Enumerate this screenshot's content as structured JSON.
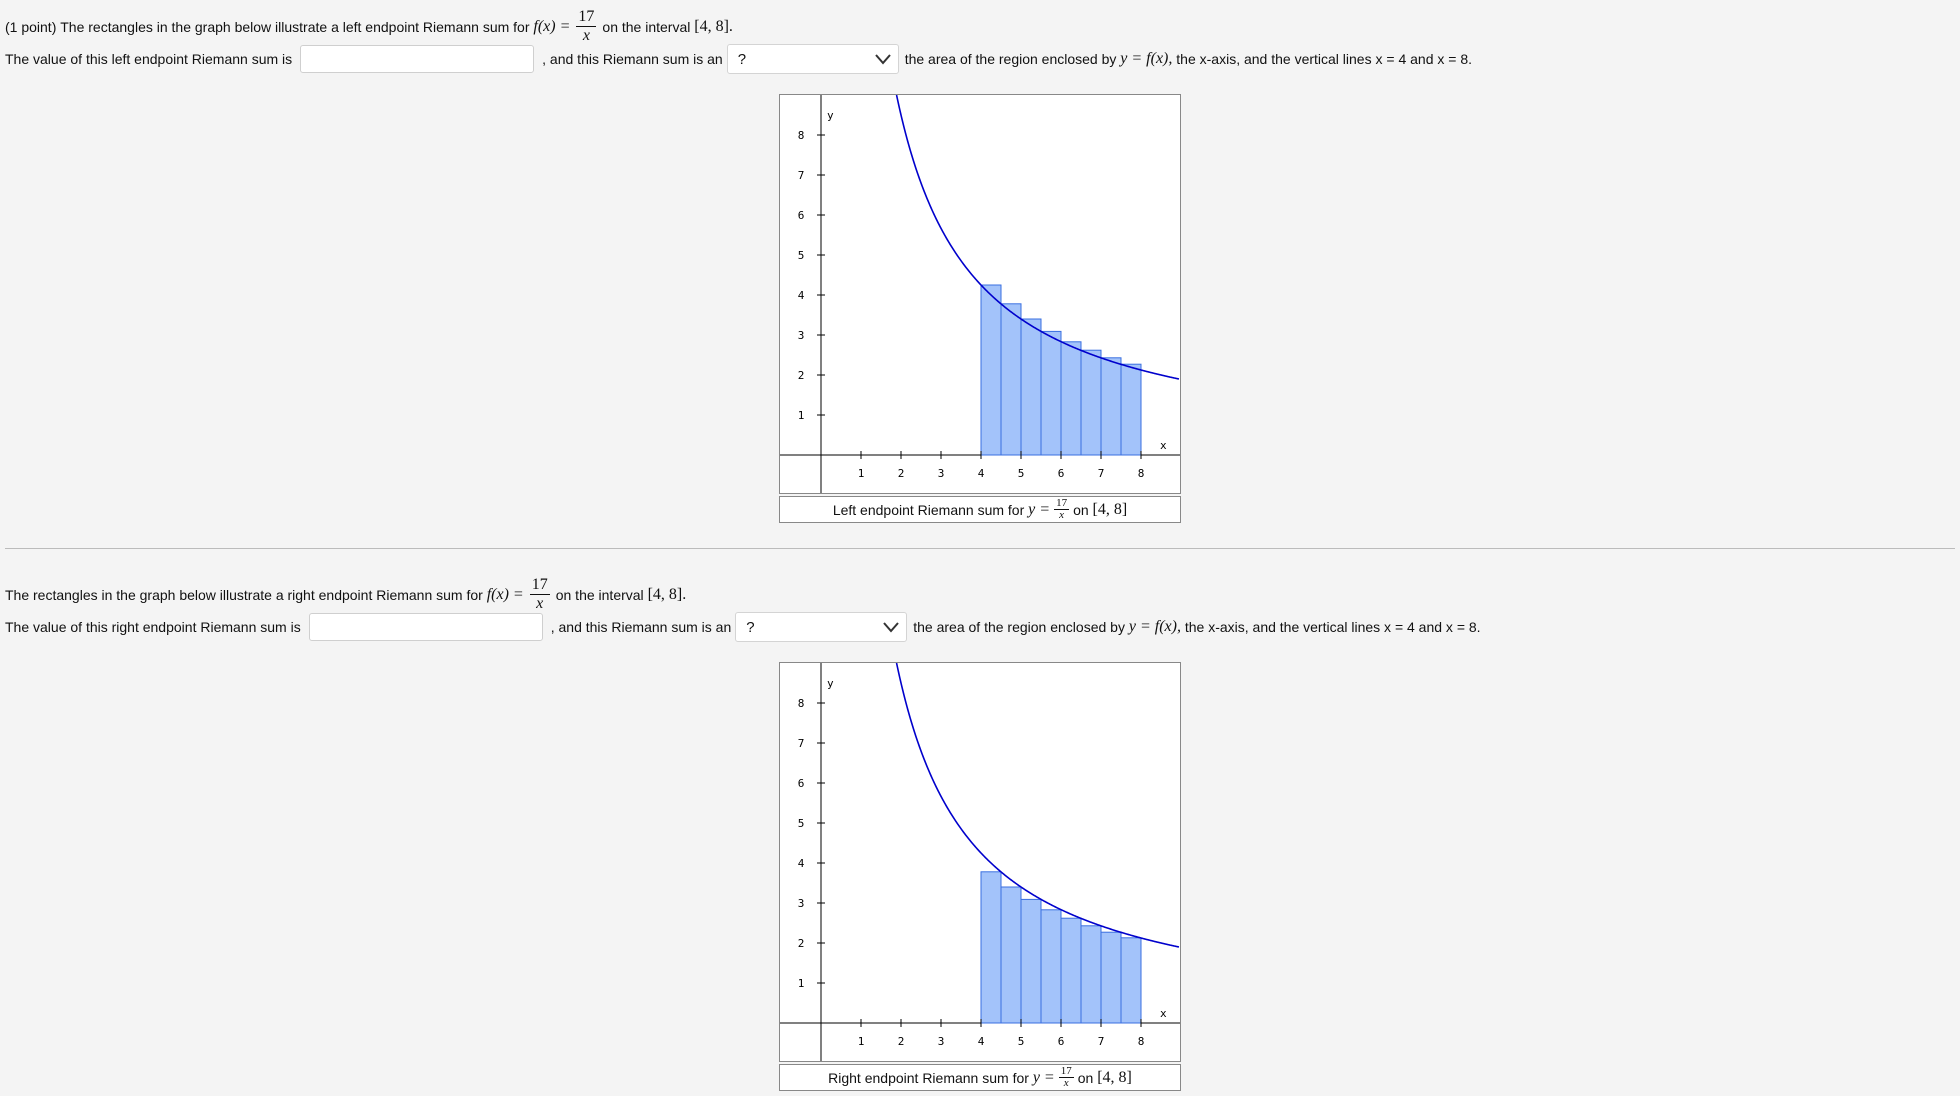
{
  "problem1": {
    "points": "(1 point)",
    "intro_pre": "The rectangles in the graph below illustrate a left endpoint Riemann sum for",
    "fx": "f(x) =",
    "numerator": "17",
    "denominator": "x",
    "intro_post": "on the interval",
    "interval": "[4, 8].",
    "value_pre": "The value of this left endpoint Riemann sum is",
    "input_value": "",
    "mid_text": ", and this Riemann sum is an",
    "select_value": "?",
    "tail_pre": "the area of the region enclosed by",
    "tail_eq": "y = f(x),",
    "tail_post": "the x-axis, and the vertical lines x = 4 and x = 8.",
    "caption_pre": "Left endpoint Riemann sum for",
    "caption_eq": "y =",
    "caption_post": "on",
    "caption_interval": "[4, 8]"
  },
  "problem2": {
    "intro_pre": "The rectangles in the graph below illustrate a right endpoint Riemann sum for",
    "fx": "f(x) =",
    "numerator": "17",
    "denominator": "x",
    "intro_post": "on the interval",
    "interval": "[4, 8].",
    "value_pre": "The value of this right endpoint Riemann sum is",
    "input_value": "",
    "mid_text": ", and this Riemann sum is an",
    "select_value": "?",
    "tail_pre": "the area of the region enclosed by",
    "tail_eq": "y = f(x),",
    "tail_post": "the x-axis, and the vertical lines x = 4 and x = 8.",
    "caption_pre": "Right endpoint Riemann sum for",
    "caption_eq": "y =",
    "caption_post": "on",
    "caption_interval": "[4, 8]"
  },
  "chart_data": [
    {
      "type": "line",
      "function": "17/x",
      "method": "left endpoint",
      "interval": [
        4,
        8
      ],
      "rectangles": [
        {
          "x_left": 4.0,
          "x_right": 4.5,
          "height": 4.25
        },
        {
          "x_left": 4.5,
          "x_right": 5.0,
          "height": 3.78
        },
        {
          "x_left": 5.0,
          "x_right": 5.5,
          "height": 3.4
        },
        {
          "x_left": 5.5,
          "x_right": 6.0,
          "height": 3.09
        },
        {
          "x_left": 6.0,
          "x_right": 6.5,
          "height": 2.83
        },
        {
          "x_left": 6.5,
          "x_right": 7.0,
          "height": 2.62
        },
        {
          "x_left": 7.0,
          "x_right": 7.5,
          "height": 2.43
        },
        {
          "x_left": 7.5,
          "x_right": 8.0,
          "height": 2.27
        }
      ],
      "xlabel": "x",
      "ylabel": "y",
      "x_ticks": [
        "1",
        "2",
        "3",
        "4",
        "5",
        "6",
        "7",
        "8"
      ],
      "y_ticks": [
        "1",
        "2",
        "3",
        "4",
        "5",
        "6",
        "7",
        "8"
      ],
      "xlim": [
        0,
        9
      ],
      "ylim": [
        0,
        9
      ],
      "curve_color": "#0000cc",
      "rect_fill": "#a3c3fa",
      "rect_stroke": "#3a6fe0"
    },
    {
      "type": "line",
      "function": "17/x",
      "method": "right endpoint",
      "interval": [
        4,
        8
      ],
      "rectangles": [
        {
          "x_left": 4.0,
          "x_right": 4.5,
          "height": 3.78
        },
        {
          "x_left": 4.5,
          "x_right": 5.0,
          "height": 3.4
        },
        {
          "x_left": 5.0,
          "x_right": 5.5,
          "height": 3.09
        },
        {
          "x_left": 5.5,
          "x_right": 6.0,
          "height": 2.83
        },
        {
          "x_left": 6.0,
          "x_right": 6.5,
          "height": 2.62
        },
        {
          "x_left": 6.5,
          "x_right": 7.0,
          "height": 2.43
        },
        {
          "x_left": 7.0,
          "x_right": 7.5,
          "height": 2.27
        },
        {
          "x_left": 7.5,
          "x_right": 8.0,
          "height": 2.13
        }
      ],
      "xlabel": "x",
      "ylabel": "y",
      "x_ticks": [
        "1",
        "2",
        "3",
        "4",
        "5",
        "6",
        "7",
        "8"
      ],
      "y_ticks": [
        "1",
        "2",
        "3",
        "4",
        "5",
        "6",
        "7",
        "8"
      ],
      "xlim": [
        0,
        9
      ],
      "ylim": [
        0,
        9
      ],
      "curve_color": "#0000cc",
      "rect_fill": "#a3c3fa",
      "rect_stroke": "#3a6fe0"
    }
  ]
}
